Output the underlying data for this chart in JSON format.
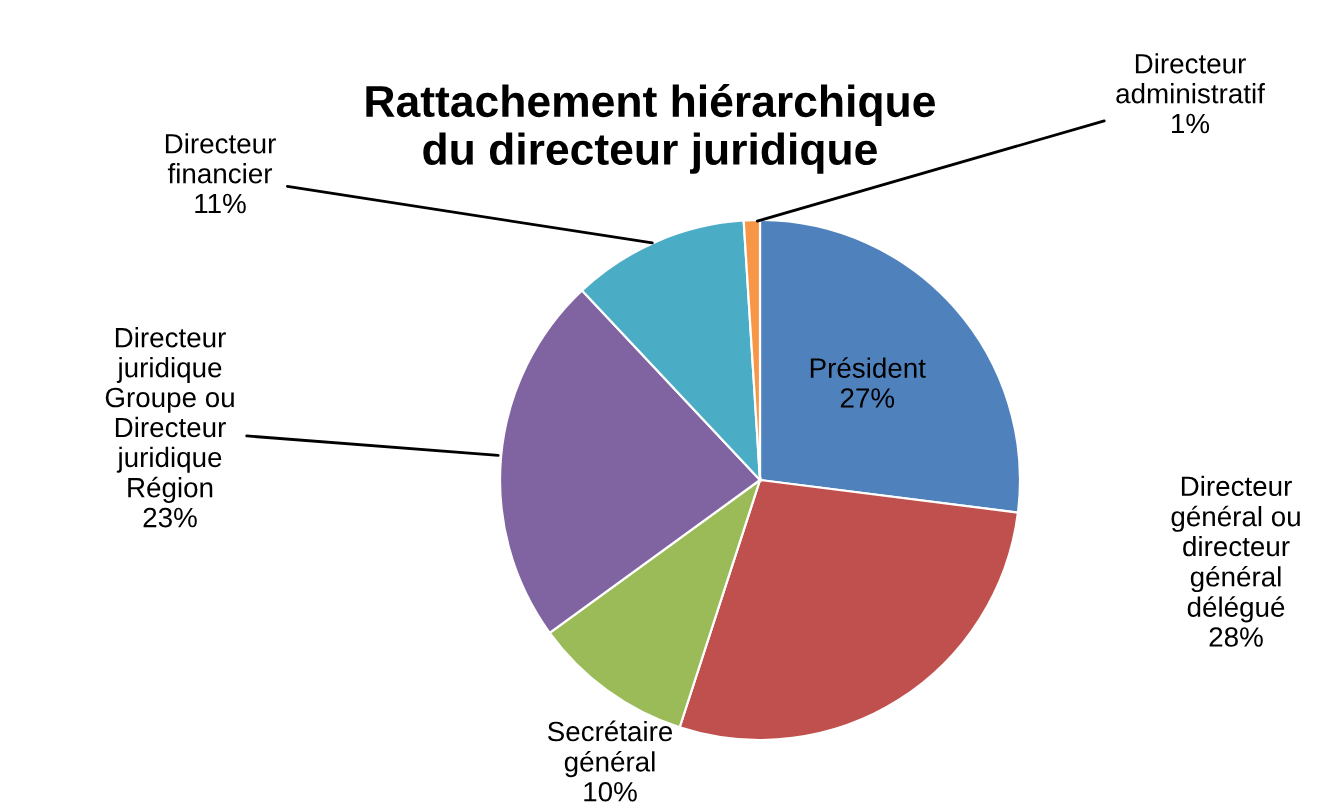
{
  "chart_data": {
    "type": "pie",
    "title": "Rattachement hiérarchique\ndu directeur juridique",
    "categories": [
      "Président",
      "Directeur\ngénéral ou\ndirecteur\ngénéral\ndélégué",
      "Secrétaire\ngénéral",
      "Directeur\njuridique\nGroupe ou\nDirecteur\njuridique\nRégion",
      "Directeur\nfinancier",
      "Directeur\nadministratif"
    ],
    "values": [
      27,
      28,
      10,
      23,
      11,
      1
    ],
    "value_labels": [
      "27%",
      "28%",
      "10%",
      "23%",
      "11%",
      "1%"
    ],
    "colors": [
      "#4f81bd",
      "#c0504d",
      "#9bbb59",
      "#8064a2",
      "#4bacc6",
      "#f79646"
    ],
    "legend": false
  }
}
